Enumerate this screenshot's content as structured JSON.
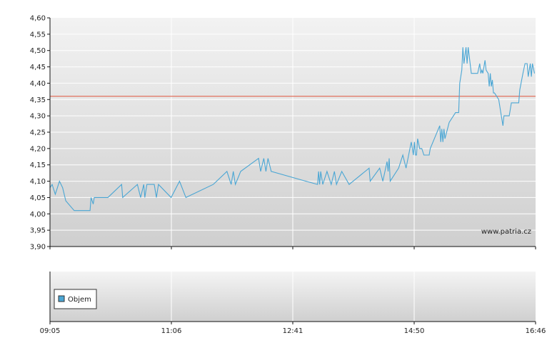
{
  "watermark": "www.patria.cz",
  "legend": {
    "label": "Objem"
  },
  "colors": {
    "price_line": "#4aa6d4",
    "reference_line": "#e0553d",
    "legend_swatch": "#4aa6d4"
  },
  "chart_data": [
    {
      "type": "line",
      "title": "",
      "xlabel": "",
      "ylabel": "",
      "x_tick_labels": [
        "09:05",
        "11:06",
        "12:41",
        "14:50",
        "16:46"
      ],
      "x_domain_minutes": [
        545,
        1006
      ],
      "y_ticks": [
        "4,60",
        "4,55",
        "4,50",
        "4,45",
        "4,40",
        "4,35",
        "4,30",
        "4,25",
        "4,20",
        "4,15",
        "4,10",
        "4,05",
        "4,00",
        "3,95",
        "3,90"
      ],
      "ylim": [
        3.9,
        4.6
      ],
      "grid": true,
      "reference_line": {
        "y": 4.36
      },
      "series": [
        {
          "points": [
            [
              545,
              4.08
            ],
            [
              547,
              4.09
            ],
            [
              550,
              4.06
            ],
            [
              554,
              4.1
            ],
            [
              557,
              4.08
            ],
            [
              560,
              4.04
            ],
            [
              568,
              4.01
            ],
            [
              583,
              4.01
            ],
            [
              584,
              4.05
            ],
            [
              586,
              4.03
            ],
            [
              587,
              4.05
            ],
            [
              600,
              4.05
            ],
            [
              613,
              4.09
            ],
            [
              614,
              4.05
            ],
            [
              628,
              4.09
            ],
            [
              631,
              4.05
            ],
            [
              634,
              4.09
            ],
            [
              635,
              4.05
            ],
            [
              637,
              4.09
            ],
            [
              644,
              4.09
            ],
            [
              646,
              4.05
            ],
            [
              648,
              4.09
            ],
            [
              660,
              4.05
            ],
            [
              668,
              4.1
            ],
            [
              674,
              4.05
            ],
            [
              700,
              4.09
            ],
            [
              713,
              4.13
            ],
            [
              717,
              4.09
            ],
            [
              719,
              4.13
            ],
            [
              721,
              4.09
            ],
            [
              726,
              4.13
            ],
            [
              743,
              4.17
            ],
            [
              745,
              4.13
            ],
            [
              748,
              4.17
            ],
            [
              750,
              4.13
            ],
            [
              752,
              4.17
            ],
            [
              755,
              4.13
            ],
            [
              788,
              4.1
            ],
            [
              799,
              4.09
            ],
            [
              800,
              4.13
            ],
            [
              801,
              4.09
            ],
            [
              802,
              4.13
            ],
            [
              804,
              4.09
            ],
            [
              808,
              4.13
            ],
            [
              812,
              4.09
            ],
            [
              815,
              4.13
            ],
            [
              817,
              4.09
            ],
            [
              822,
              4.13
            ],
            [
              829,
              4.09
            ],
            [
              848,
              4.14
            ],
            [
              849,
              4.1
            ],
            [
              858,
              4.14
            ],
            [
              861,
              4.1
            ],
            [
              865,
              4.16
            ],
            [
              866,
              4.13
            ],
            [
              867,
              4.17
            ],
            [
              868,
              4.1
            ],
            [
              876,
              4.14
            ],
            [
              880,
              4.18
            ],
            [
              883,
              4.14
            ],
            [
              888,
              4.22
            ],
            [
              890,
              4.18
            ],
            [
              891,
              4.22
            ],
            [
              892,
              4.18
            ],
            [
              893,
              4.18
            ],
            [
              894,
              4.23
            ],
            [
              896,
              4.2
            ],
            [
              897,
              4.2
            ],
            [
              898,
              4.2
            ],
            [
              900,
              4.18
            ],
            [
              905,
              4.18
            ],
            [
              906,
              4.2
            ],
            [
              915,
              4.27
            ],
            [
              916,
              4.22
            ],
            [
              917,
              4.26
            ],
            [
              918,
              4.22
            ],
            [
              919,
              4.26
            ],
            [
              920,
              4.23
            ],
            [
              924,
              4.28
            ],
            [
              930,
              4.31
            ],
            [
              933,
              4.31
            ],
            [
              934,
              4.4
            ],
            [
              936,
              4.44
            ],
            [
              937,
              4.51
            ],
            [
              938,
              4.46
            ],
            [
              940,
              4.51
            ],
            [
              941,
              4.46
            ],
            [
              942,
              4.51
            ],
            [
              945,
              4.43
            ],
            [
              951,
              4.43
            ],
            [
              953,
              4.46
            ],
            [
              954,
              4.43
            ],
            [
              955,
              4.44
            ],
            [
              956,
              4.43
            ],
            [
              958,
              4.47
            ],
            [
              959,
              4.44
            ],
            [
              961,
              4.43
            ],
            [
              962,
              4.39
            ],
            [
              963,
              4.43
            ],
            [
              964,
              4.39
            ],
            [
              965,
              4.41
            ],
            [
              966,
              4.37
            ],
            [
              967,
              4.37
            ],
            [
              971,
              4.35
            ],
            [
              973,
              4.31
            ],
            [
              975,
              4.27
            ],
            [
              976,
              4.3
            ],
            [
              981,
              4.3
            ],
            [
              983,
              4.34
            ],
            [
              990,
              4.34
            ],
            [
              991,
              4.38
            ],
            [
              994,
              4.43
            ],
            [
              996,
              4.46
            ],
            [
              998,
              4.46
            ],
            [
              999,
              4.42
            ],
            [
              1001,
              4.46
            ],
            [
              1002,
              4.42
            ],
            [
              1003,
              4.46
            ],
            [
              1005,
              4.43
            ]
          ]
        }
      ]
    },
    {
      "type": "bar",
      "title": "",
      "legend": [
        "Objem"
      ],
      "x_tick_labels": [
        "09:05",
        "11:06",
        "12:41",
        "14:50",
        "16:46"
      ],
      "series": [
        {
          "name": "Objem",
          "values": []
        }
      ]
    }
  ]
}
